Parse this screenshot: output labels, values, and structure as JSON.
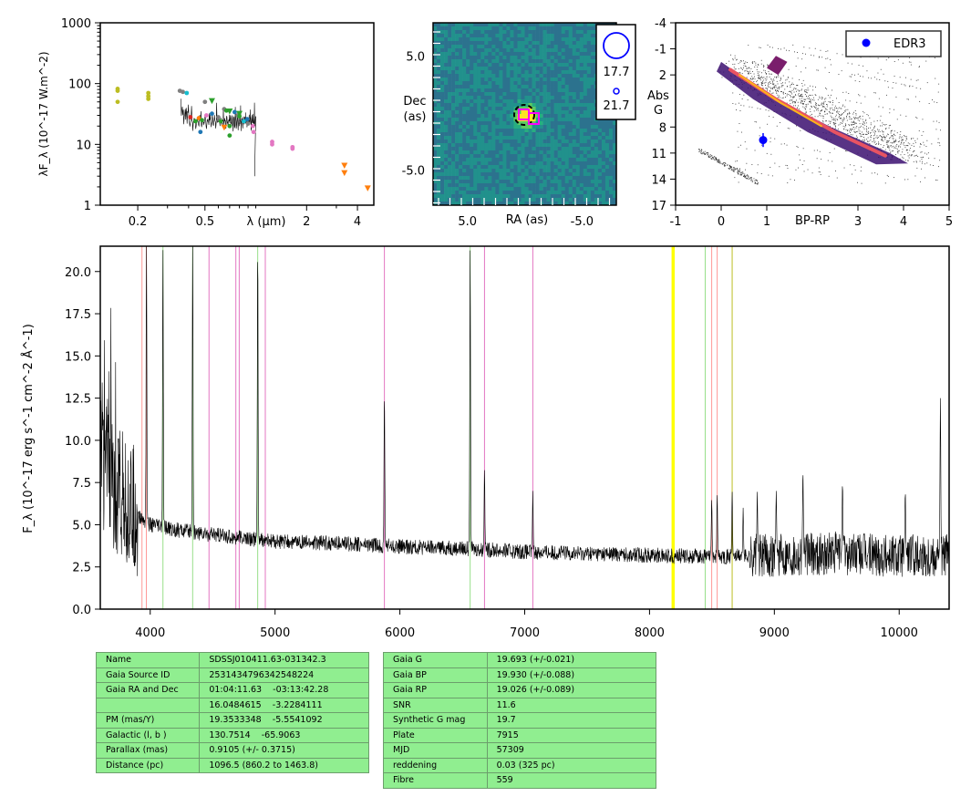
{
  "colors": {
    "bg": "#ffffff",
    "table_bg": "#90ee90",
    "axis": "#000000",
    "blue": "#0000ff",
    "magenta": "#ff00ff",
    "orange": "#ff7f0e",
    "olive": "#bcbd22",
    "green": "#2ca02c",
    "grey": "#7f7f7f",
    "pink": "#e377c2",
    "yellow": "#ffff00"
  },
  "chart_data": [
    {
      "id": "sed",
      "type": "scatter",
      "xscale": "log",
      "yscale": "log",
      "xlabel": "λ (μm)",
      "ylabel": "λF_λ (10^-17 W.m^-2)",
      "xlim": [
        0.12,
        5.0
      ],
      "ylim": [
        1,
        1000
      ],
      "x_ticks": [
        "0.2",
        "0.5",
        "2",
        "4"
      ],
      "x_tick_values": [
        0.2,
        0.5,
        2,
        4
      ],
      "y_ticks": [
        "1",
        "10",
        "100",
        "1000"
      ],
      "y_tick_values": [
        1,
        10,
        100,
        1000
      ],
      "points": [
        {
          "x": 0.152,
          "y": 82,
          "color": "#bcbd22"
        },
        {
          "x": 0.152,
          "y": 76,
          "color": "#bcbd22"
        },
        {
          "x": 0.152,
          "y": 50,
          "color": "#bcbd22"
        },
        {
          "x": 0.231,
          "y": 70,
          "color": "#bcbd22"
        },
        {
          "x": 0.231,
          "y": 62,
          "color": "#bcbd22"
        },
        {
          "x": 0.231,
          "y": 56,
          "color": "#bcbd22"
        },
        {
          "x": 0.355,
          "y": 76,
          "color": "#7f7f7f"
        },
        {
          "x": 0.37,
          "y": 73,
          "color": "#7f7f7f"
        },
        {
          "x": 0.39,
          "y": 70,
          "color": "#17becf"
        },
        {
          "x": 0.41,
          "y": 28,
          "color": "#d62728"
        },
        {
          "x": 0.44,
          "y": 24,
          "color": "#2ca02c"
        },
        {
          "x": 0.46,
          "y": 27,
          "color": "#ff7f0e"
        },
        {
          "x": 0.47,
          "y": 16,
          "color": "#1f77b4"
        },
        {
          "x": 0.48,
          "y": 25,
          "color": "#2ca02c"
        },
        {
          "x": 0.5,
          "y": 50,
          "color": "#7f7f7f"
        },
        {
          "x": 0.51,
          "y": 30,
          "color": "#e377c2"
        },
        {
          "x": 0.55,
          "y": 32,
          "color": "#1f77b4"
        },
        {
          "x": 0.6,
          "y": 28,
          "color": "#7f7f7f"
        },
        {
          "x": 0.62,
          "y": 24,
          "color": "#2ca02c"
        },
        {
          "x": 0.65,
          "y": 38,
          "color": "#7f7f7f"
        },
        {
          "x": 0.67,
          "y": 36,
          "color": "#2ca02c"
        },
        {
          "x": 0.7,
          "y": 20,
          "color": "#2ca02c"
        },
        {
          "x": 0.7,
          "y": 14,
          "color": "#2ca02c"
        },
        {
          "x": 0.75,
          "y": 34,
          "color": "#1f77b4"
        },
        {
          "x": 0.78,
          "y": 30,
          "color": "#7f7f7f"
        },
        {
          "x": 0.8,
          "y": 29,
          "color": "#2ca02c"
        },
        {
          "x": 0.85,
          "y": 24,
          "color": "#17becf"
        },
        {
          "x": 0.89,
          "y": 26,
          "color": "#1f77b4"
        },
        {
          "x": 0.9,
          "y": 22,
          "color": "#7f7f7f"
        },
        {
          "x": 0.96,
          "y": 20,
          "color": "#e377c2"
        },
        {
          "x": 0.97,
          "y": 16,
          "color": "#e377c2"
        },
        {
          "x": 1.25,
          "y": 11,
          "color": "#e377c2"
        },
        {
          "x": 1.25,
          "y": 10,
          "color": "#e377c2"
        },
        {
          "x": 1.65,
          "y": 9,
          "color": "#e377c2"
        },
        {
          "x": 1.65,
          "y": 8.5,
          "color": "#e377c2"
        }
      ],
      "tri_points": [
        {
          "x": 0.55,
          "y": 52,
          "color": "#2ca02c"
        },
        {
          "x": 0.7,
          "y": 35,
          "color": "#2ca02c"
        },
        {
          "x": 0.65,
          "y": 19,
          "color": "#ff7f0e"
        },
        {
          "x": 0.8,
          "y": 32,
          "color": "#2ca02c"
        },
        {
          "x": 3.35,
          "y": 4.5,
          "color": "#ff7f0e"
        },
        {
          "x": 3.35,
          "y": 3.4,
          "color": "#ff7f0e"
        },
        {
          "x": 4.6,
          "y": 1.9,
          "color": "#ff7f0e"
        }
      ]
    },
    {
      "id": "cutout",
      "type": "heatmap",
      "xlabel": "RA (as)",
      "ylabel_lines": [
        "Dec",
        "(as)"
      ],
      "x_ticks": [
        "5.0",
        "-5.0"
      ],
      "x_tick_values": [
        5.0,
        -5.0
      ],
      "y_ticks": [
        "5.0",
        "-5.0"
      ],
      "y_tick_values": [
        5.0,
        -5.0
      ],
      "xlim": [
        8,
        -8
      ],
      "ylim": [
        -8,
        8
      ],
      "legend": [
        "17.7",
        "21.7"
      ]
    },
    {
      "id": "cmd",
      "type": "scatter",
      "xlabel": "BP-RP",
      "ylabel_lines": [
        "Abs",
        "G"
      ],
      "xlim": [
        -1,
        5
      ],
      "ylim": [
        17,
        -4
      ],
      "x_ticks": [
        "-1",
        "0",
        "1",
        "3",
        "4",
        "5"
      ],
      "x_tick_values": [
        -1,
        0,
        1,
        3,
        4,
        5
      ],
      "y_ticks": [
        "-4",
        "-1",
        "2",
        "8",
        "11",
        "14",
        "17"
      ],
      "y_tick_values": [
        -4,
        -1,
        2,
        8,
        11,
        14,
        17
      ],
      "legend": [
        "EDR3"
      ],
      "points": [
        {
          "x": 0.92,
          "y": 9.5,
          "err": 0.8,
          "color": "#0000ff"
        }
      ]
    },
    {
      "id": "spectrum",
      "type": "line",
      "ylabel": "F_λ (10^-17 erg s^-1 cm^-2 Å^-1)",
      "xlim": [
        3600,
        10400
      ],
      "ylim": [
        0,
        21.5
      ],
      "x_ticks": [
        "4000",
        "5000",
        "6000",
        "7000",
        "8000",
        "9000",
        "10000"
      ],
      "x_tick_values": [
        4000,
        5000,
        6000,
        7000,
        8000,
        9000,
        10000
      ],
      "y_ticks": [
        "0.0",
        "2.5",
        "5.0",
        "7.5",
        "10.0",
        "12.5",
        "15.0",
        "17.5",
        "20.0"
      ],
      "y_tick_values": [
        0,
        2.5,
        5,
        7.5,
        10,
        12.5,
        15,
        17.5,
        20
      ],
      "continuum": [
        [
          3600,
          9.0
        ],
        [
          3700,
          7.5
        ],
        [
          3800,
          6.3
        ],
        [
          3900,
          5.5
        ],
        [
          4000,
          5.0
        ],
        [
          4200,
          4.7
        ],
        [
          4500,
          4.4
        ],
        [
          5000,
          4.0
        ],
        [
          5500,
          3.9
        ],
        [
          6000,
          3.7
        ],
        [
          6500,
          3.6
        ],
        [
          7000,
          3.4
        ],
        [
          7500,
          3.3
        ],
        [
          8000,
          3.2
        ],
        [
          8500,
          3.1
        ],
        [
          9000,
          3.2
        ],
        [
          9500,
          3.3
        ],
        [
          10000,
          3.2
        ],
        [
          10400,
          3.2
        ]
      ],
      "emission_lines": [
        {
          "x": 3970,
          "peak": 21.5
        },
        {
          "x": 4102,
          "peak": 21.5
        },
        {
          "x": 4340,
          "peak": 21.5
        },
        {
          "x": 4861,
          "peak": 21.5
        },
        {
          "x": 5876,
          "peak": 12.8
        },
        {
          "x": 6563,
          "peak": 21.5
        },
        {
          "x": 6678,
          "peak": 8.3
        },
        {
          "x": 7065,
          "peak": 7.0
        },
        {
          "x": 8498,
          "peak": 6.5
        },
        {
          "x": 8542,
          "peak": 6.8
        },
        {
          "x": 8662,
          "peak": 7.0
        },
        {
          "x": 8750,
          "peak": 6.0
        },
        {
          "x": 8863,
          "peak": 7.0
        },
        {
          "x": 9015,
          "peak": 7.0
        },
        {
          "x": 9229,
          "peak": 8.2
        },
        {
          "x": 9546,
          "peak": 7.5
        },
        {
          "x": 10049,
          "peak": 7.0
        },
        {
          "x": 10330,
          "peak": 12.5
        }
      ],
      "marker_lines": [
        {
          "x": 3934,
          "color": "#ff9896"
        },
        {
          "x": 3969,
          "color": "#ff9896"
        },
        {
          "x": 4102,
          "color": "#98df8a"
        },
        {
          "x": 4340,
          "color": "#98df8a"
        },
        {
          "x": 4471,
          "color": "#e377c2"
        },
        {
          "x": 4686,
          "color": "#e377c2"
        },
        {
          "x": 4713,
          "color": "#e377c2"
        },
        {
          "x": 4861,
          "color": "#98df8a"
        },
        {
          "x": 4922,
          "color": "#e377c2"
        },
        {
          "x": 5876,
          "color": "#e377c2"
        },
        {
          "x": 6563,
          "color": "#98df8a"
        },
        {
          "x": 6678,
          "color": "#e377c2"
        },
        {
          "x": 7065,
          "color": "#e377c2"
        },
        {
          "x": 8183,
          "color": "#ffff00"
        },
        {
          "x": 8195,
          "color": "#ffff00"
        },
        {
          "x": 8446,
          "color": "#98df8a"
        },
        {
          "x": 8498,
          "color": "#ff9896"
        },
        {
          "x": 8542,
          "color": "#ff9896"
        },
        {
          "x": 8662,
          "color": "#bcbd22"
        }
      ]
    }
  ],
  "info_table_left": [
    [
      "Name",
      "SDSSJ010411.63-031342.3"
    ],
    [
      "Gaia Source ID",
      "2531434796342548224"
    ],
    [
      "Gaia RA and Dec",
      "01:04:11.63    -03:13:42.28"
    ],
    [
      "",
      "16.0484615    -3.2284111"
    ],
    [
      "PM (mas/Y)",
      "19.3533348    -5.5541092"
    ],
    [
      "Galactic (l, b )",
      "130.7514    -65.9063"
    ],
    [
      "Parallax (mas)",
      "0.9105 (+/- 0.3715)"
    ],
    [
      "Distance (pc)",
      "1096.5 (860.2 to 1463.8)"
    ]
  ],
  "info_table_right": [
    [
      "Gaia G",
      "19.693 (+/-0.021)"
    ],
    [
      "Gaia BP",
      "19.930 (+/-0.088)"
    ],
    [
      "Gaia RP",
      "19.026 (+/-0.089)"
    ],
    [
      "SNR",
      "11.6"
    ],
    [
      "Synthetic G mag",
      "19.7"
    ],
    [
      "Plate",
      "7915"
    ],
    [
      "MJD",
      "57309"
    ],
    [
      "reddening",
      "0.03 (325 pc)"
    ],
    [
      "Fibre",
      "559"
    ]
  ]
}
